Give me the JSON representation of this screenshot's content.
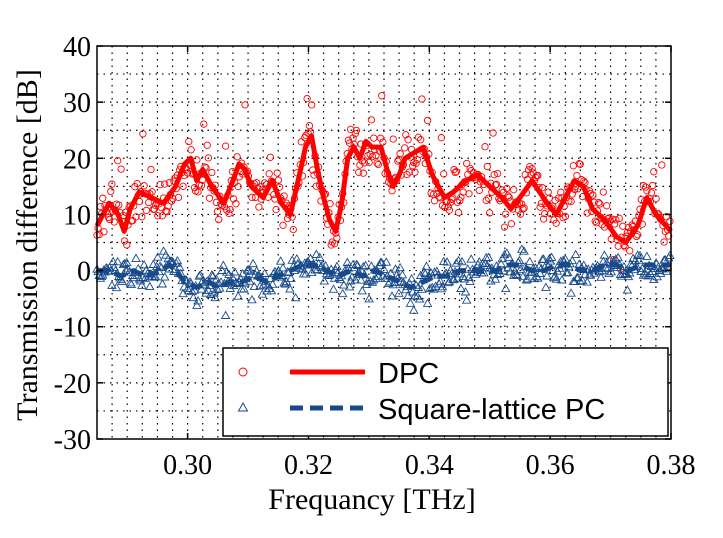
{
  "chart_data": {
    "type": "scatter",
    "xlabel": "Frequancy [THz]",
    "ylabel": "Transmission difference [dB]",
    "xlim": [
      0.285,
      0.38
    ],
    "ylim": [
      -30,
      40
    ],
    "xticks": [
      0.3,
      0.32,
      0.34,
      0.36,
      0.38
    ],
    "xtick_labels": [
      "0.30",
      "0.32",
      "0.34",
      "0.36",
      "0.38"
    ],
    "yticks": [
      -30,
      -20,
      -10,
      0,
      10,
      20,
      30,
      40
    ],
    "ytick_labels": [
      "-30",
      "-20",
      "-10",
      "0",
      "10",
      "20",
      "30",
      "40"
    ],
    "grid": "dotted",
    "legend_position": "bottom-right",
    "series": [
      {
        "name": "DPC",
        "color": "#ff0000",
        "marker": "circle",
        "line_style": "solid",
        "smoothed": [
          [
            0.285,
            8
          ],
          [
            0.287,
            12
          ],
          [
            0.2885,
            10
          ],
          [
            0.2895,
            7
          ],
          [
            0.2905,
            11
          ],
          [
            0.292,
            14
          ],
          [
            0.294,
            13
          ],
          [
            0.296,
            12
          ],
          [
            0.298,
            15
          ],
          [
            0.2995,
            19
          ],
          [
            0.3005,
            20
          ],
          [
            0.3015,
            16
          ],
          [
            0.3025,
            18
          ],
          [
            0.304,
            15
          ],
          [
            0.306,
            12
          ],
          [
            0.3075,
            16
          ],
          [
            0.3085,
            19
          ],
          [
            0.3095,
            18
          ],
          [
            0.3105,
            15
          ],
          [
            0.3125,
            13
          ],
          [
            0.314,
            16
          ],
          [
            0.3155,
            12
          ],
          [
            0.317,
            10
          ],
          [
            0.3185,
            17
          ],
          [
            0.3195,
            22
          ],
          [
            0.3205,
            24
          ],
          [
            0.3215,
            18
          ],
          [
            0.3225,
            13
          ],
          [
            0.3235,
            9
          ],
          [
            0.3245,
            7
          ],
          [
            0.3255,
            12
          ],
          [
            0.3265,
            20
          ],
          [
            0.3275,
            22
          ],
          [
            0.3285,
            20
          ],
          [
            0.3295,
            23
          ],
          [
            0.3305,
            22
          ],
          [
            0.332,
            22
          ],
          [
            0.333,
            18
          ],
          [
            0.334,
            15
          ],
          [
            0.335,
            17
          ],
          [
            0.336,
            20
          ],
          [
            0.3375,
            21
          ],
          [
            0.339,
            22
          ],
          [
            0.3405,
            17
          ],
          [
            0.3425,
            13
          ],
          [
            0.344,
            14
          ],
          [
            0.346,
            16
          ],
          [
            0.348,
            17
          ],
          [
            0.35,
            15
          ],
          [
            0.352,
            13
          ],
          [
            0.3535,
            11
          ],
          [
            0.355,
            13
          ],
          [
            0.357,
            16
          ],
          [
            0.3595,
            12
          ],
          [
            0.361,
            10
          ],
          [
            0.3625,
            13
          ],
          [
            0.364,
            16
          ],
          [
            0.3655,
            15
          ],
          [
            0.367,
            11
          ],
          [
            0.369,
            9
          ],
          [
            0.371,
            6
          ],
          [
            0.3725,
            5
          ],
          [
            0.3745,
            8
          ],
          [
            0.376,
            13
          ],
          [
            0.3775,
            10
          ],
          [
            0.38,
            7
          ]
        ]
      },
      {
        "name": "Square-lattice PC",
        "color": "#174a8b",
        "marker": "triangle",
        "line_style": "dashed",
        "smoothed": [
          [
            0.285,
            0
          ],
          [
            0.287,
            0
          ],
          [
            0.289,
            -1
          ],
          [
            0.291,
            0
          ],
          [
            0.293,
            -1
          ],
          [
            0.2955,
            0
          ],
          [
            0.297,
            1
          ],
          [
            0.298,
            0
          ],
          [
            0.2995,
            -2
          ],
          [
            0.3015,
            -3
          ],
          [
            0.3035,
            -2
          ],
          [
            0.305,
            -3
          ],
          [
            0.307,
            -2
          ],
          [
            0.309,
            -2
          ],
          [
            0.311,
            -1
          ],
          [
            0.313,
            -2
          ],
          [
            0.315,
            -1
          ],
          [
            0.317,
            0
          ],
          [
            0.319,
            1
          ],
          [
            0.321,
            1
          ],
          [
            0.323,
            0
          ],
          [
            0.325,
            -1
          ],
          [
            0.327,
            0
          ],
          [
            0.329,
            -1
          ],
          [
            0.331,
            0
          ],
          [
            0.333,
            -1
          ],
          [
            0.335,
            -2
          ],
          [
            0.337,
            -3
          ],
          [
            0.339,
            -2
          ],
          [
            0.341,
            -1
          ],
          [
            0.343,
            -1
          ],
          [
            0.345,
            0
          ],
          [
            0.347,
            0
          ],
          [
            0.349,
            0
          ],
          [
            0.351,
            0
          ],
          [
            0.353,
            1
          ],
          [
            0.355,
            1
          ],
          [
            0.357,
            0
          ],
          [
            0.359,
            0
          ],
          [
            0.361,
            1
          ],
          [
            0.363,
            1
          ],
          [
            0.365,
            0
          ],
          [
            0.367,
            0
          ],
          [
            0.369,
            1
          ],
          [
            0.371,
            1
          ],
          [
            0.373,
            0
          ],
          [
            0.375,
            1
          ],
          [
            0.377,
            1
          ],
          [
            0.38,
            1
          ]
        ]
      }
    ]
  }
}
